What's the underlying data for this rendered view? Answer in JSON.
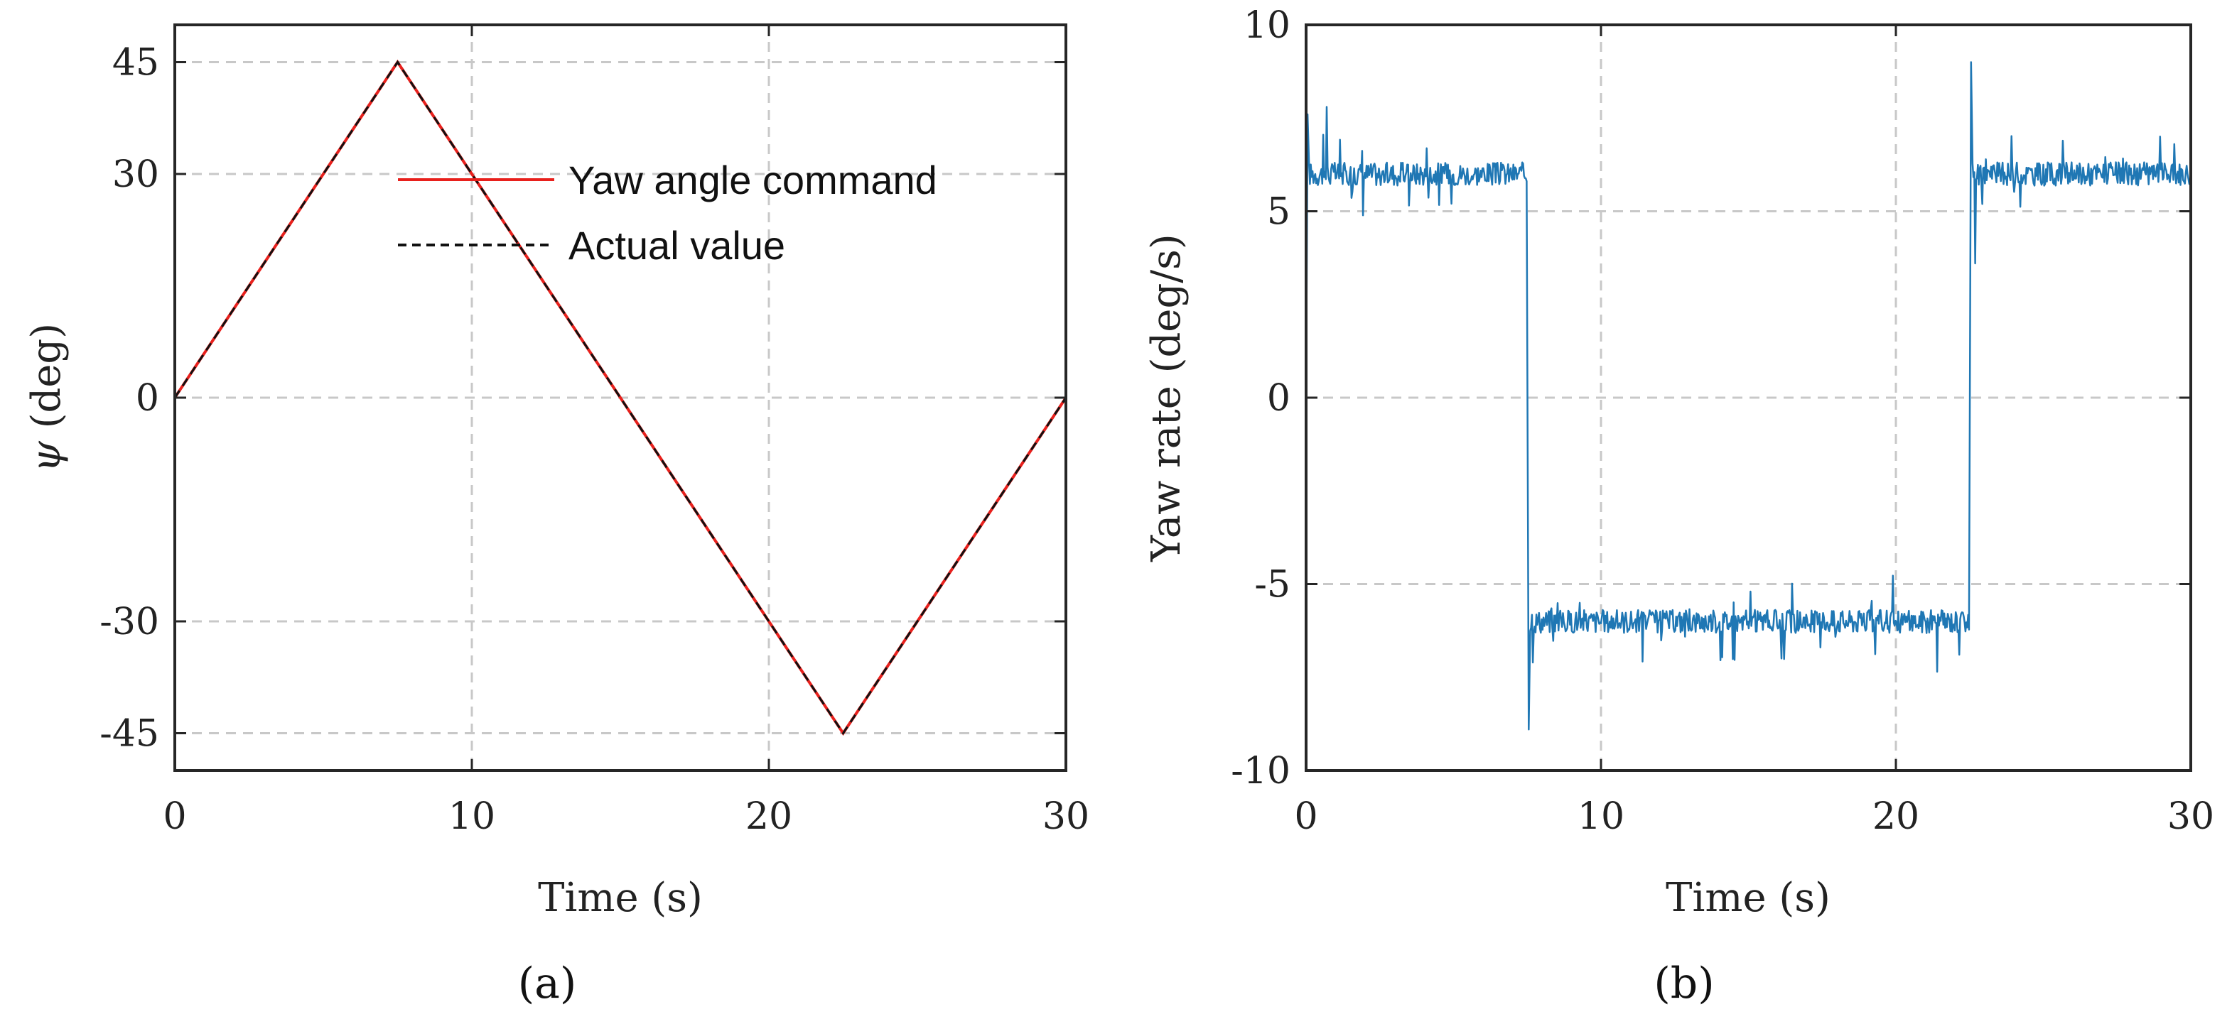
{
  "chart_data": [
    {
      "type": "line",
      "panel_label": "(a)",
      "xlabel": "Time (s)",
      "ylabel_symbol": "ψ",
      "ylabel_unit": " (deg)",
      "xlim": [
        0,
        30
      ],
      "ylim": [
        -50,
        50
      ],
      "xticks": [
        0,
        10,
        20,
        30
      ],
      "xtick_labels": [
        "0",
        "10",
        "20",
        "30"
      ],
      "yticks": [
        45,
        30,
        0,
        -30,
        -45
      ],
      "ytick_labels": [
        "45",
        "30",
        "0",
        "-30",
        "-45"
      ],
      "grid": true,
      "legend_position": "top-right",
      "series": [
        {
          "name": "Yaw angle command",
          "color": "#e8201c",
          "style": "solid",
          "x": [
            0,
            7.5,
            22.5,
            30
          ],
          "y": [
            0,
            45,
            -45,
            0
          ]
        },
        {
          "name": "Actual value",
          "color": "#111111",
          "style": "dashed",
          "x": [
            0,
            7.5,
            22.5,
            30
          ],
          "y": [
            0,
            45,
            -45,
            0
          ]
        }
      ]
    },
    {
      "type": "line",
      "panel_label": "(b)",
      "xlabel": "Time (s)",
      "ylabel": "Yaw rate (deg/s)",
      "xlim": [
        0,
        30
      ],
      "ylim": [
        -10,
        10
      ],
      "xticks": [
        0,
        10,
        20,
        30
      ],
      "xtick_labels": [
        "0",
        "10",
        "20",
        "30"
      ],
      "yticks": [
        10,
        5,
        0,
        -5,
        -10
      ],
      "ytick_labels": [
        "10",
        "5",
        "0",
        "-5",
        "-10"
      ],
      "grid": true,
      "series": [
        {
          "name": "Yaw rate",
          "color": "#1f77b4",
          "style": "solid",
          "segments": [
            {
              "x_start": 0.1,
              "x_end": 7.5,
              "mean": 6
            },
            {
              "x_start": 7.6,
              "x_end": 22.5,
              "mean": -6
            },
            {
              "x_start": 22.6,
              "x_end": 30,
              "mean": 6
            }
          ],
          "noise_amplitude": 0.7,
          "spikes": [
            {
              "x": 0.05,
              "y": 7.6
            },
            {
              "x": 0.05,
              "y": 0
            },
            {
              "x": 0.7,
              "y": 7.8
            },
            {
              "x": 7.55,
              "y": -8.9
            },
            {
              "x": 22.55,
              "y": 9.0
            },
            {
              "x": 22.7,
              "y": 3.6
            }
          ]
        }
      ]
    }
  ]
}
